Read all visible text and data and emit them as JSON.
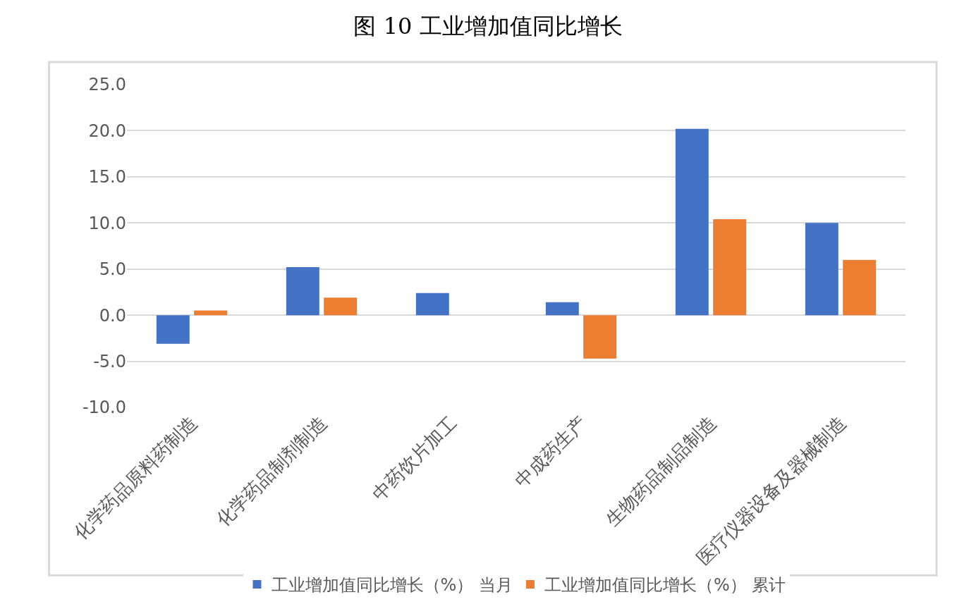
{
  "chart_data": {
    "type": "bar",
    "title": "图 10 工业增加值同比增长",
    "categories": [
      "化学药品原料药制造",
      "化学药品制剂制造",
      "中药饮片加工",
      "中成药生产",
      "生物药品制品制造",
      "医疗仪器设备及器械制造"
    ],
    "series": [
      {
        "name": "工业增加值同比增长（%） 当月",
        "color": "#4472c4",
        "values": [
          -3.1,
          5.2,
          2.4,
          1.4,
          20.2,
          10.0
        ]
      },
      {
        "name": "工业增加值同比增长（%） 累计",
        "color": "#ed7d31",
        "values": [
          0.5,
          1.9,
          null,
          -4.7,
          10.4,
          6.0
        ]
      }
    ],
    "ylim": [
      -10,
      25
    ],
    "yticks": [
      {
        "value": -10,
        "label": "-10.0"
      },
      {
        "value": -5,
        "label": "-5.0"
      },
      {
        "value": 0,
        "label": "0.0"
      },
      {
        "value": 5,
        "label": "5.0"
      },
      {
        "value": 10,
        "label": "10.0"
      },
      {
        "value": 15,
        "label": "15.0"
      },
      {
        "value": 20,
        "label": "20.0"
      },
      {
        "value": 25,
        "label": "25.0"
      }
    ],
    "grid": "y",
    "legend": "bottom"
  }
}
